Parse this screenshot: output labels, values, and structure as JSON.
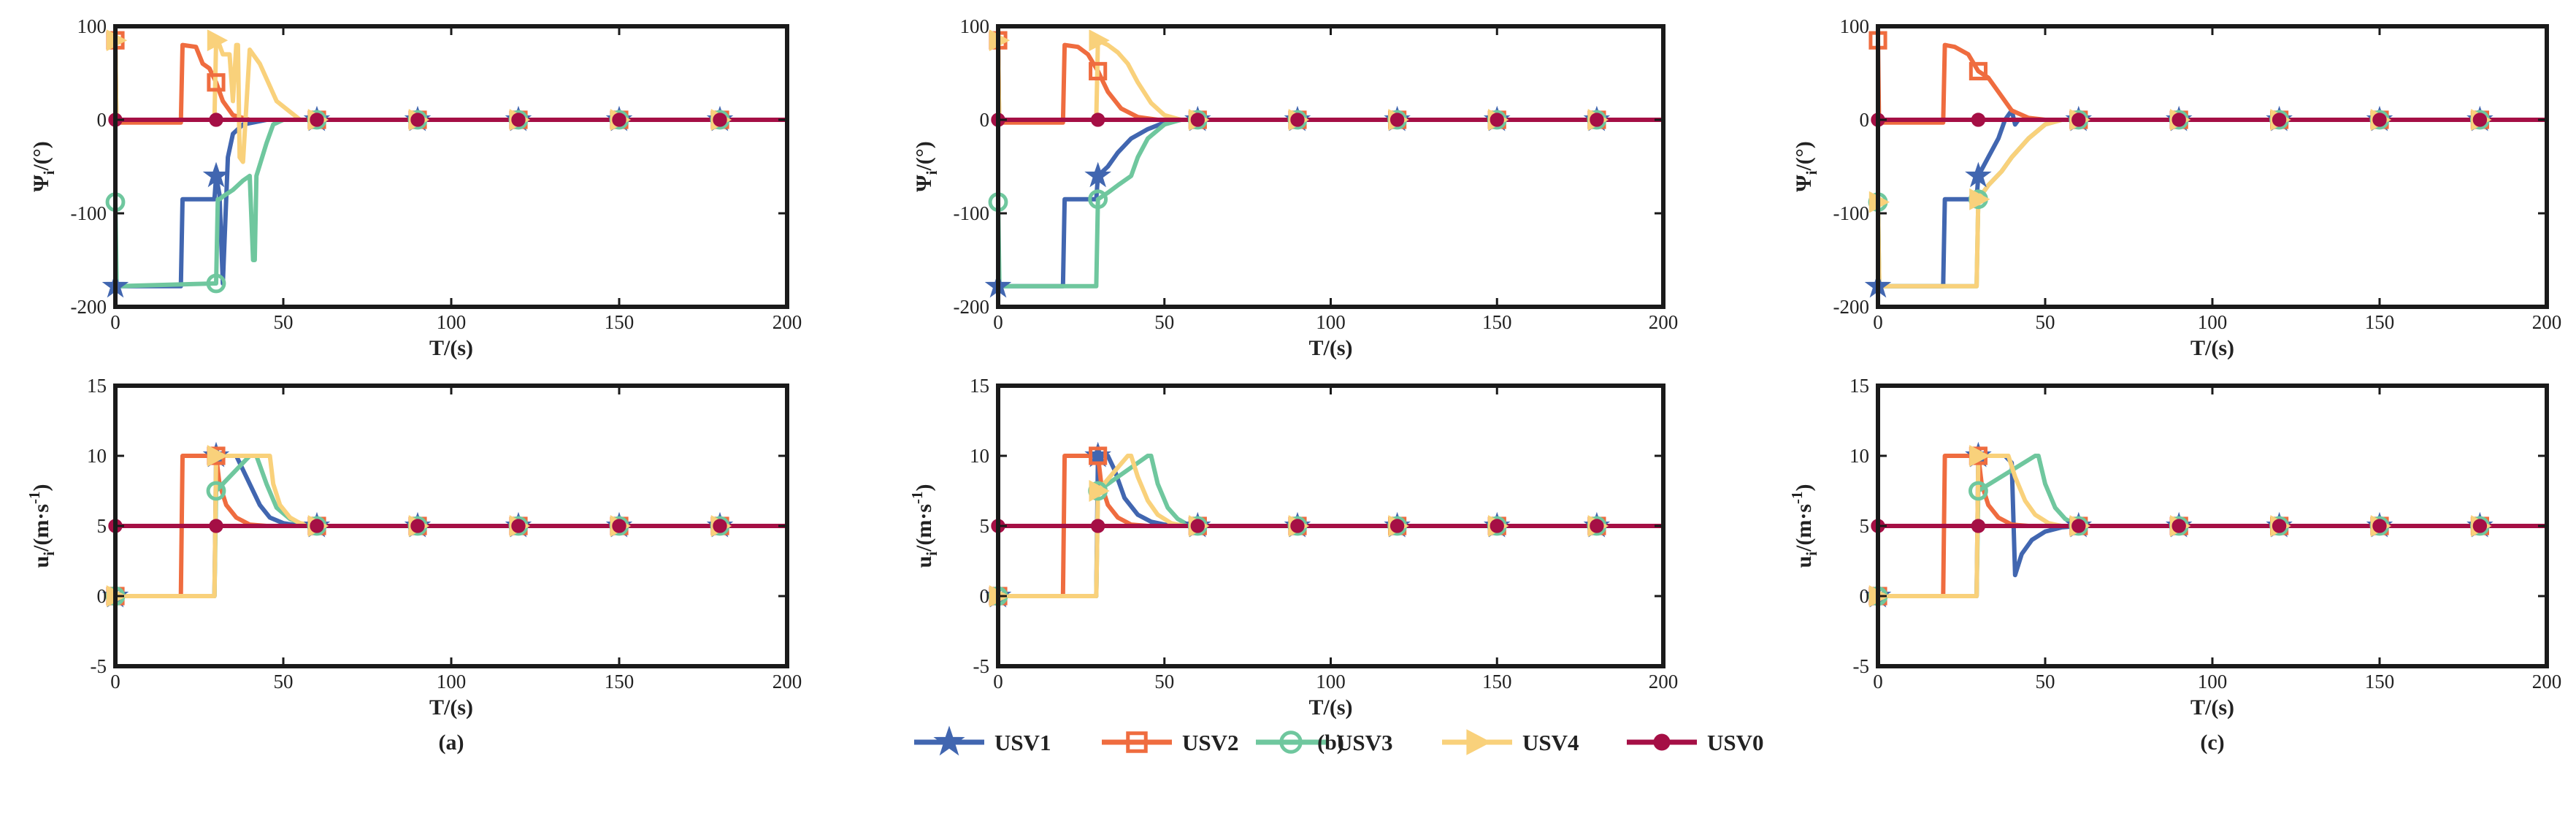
{
  "colors": {
    "USV1": "#4166b0",
    "USV2": "#ef6c3f",
    "USV3": "#6fc79e",
    "USV4": "#f9d17b",
    "USV0": "#a50f45"
  },
  "legend": [
    {
      "id": "USV1",
      "label": "USV1",
      "marker": "star"
    },
    {
      "id": "USV2",
      "label": "USV2",
      "marker": "square"
    },
    {
      "id": "USV3",
      "label": "USV3",
      "marker": "circle-open"
    },
    {
      "id": "USV4",
      "label": "USV4",
      "marker": "triangle-right"
    },
    {
      "id": "USV0",
      "label": "USV0",
      "marker": "circle-filled"
    }
  ],
  "axis_text": {
    "psi_ylabel_main": "Ψ",
    "psi_ylabel_sub": "i",
    "psi_ylabel_tail": "/(°)",
    "u_ylabel_main": "u",
    "u_ylabel_sub": "i",
    "u_ylabel_mid": "/(m·s",
    "u_ylabel_sup": "-1",
    "u_ylabel_tail": ")",
    "xlabel": "T/(s)"
  },
  "chart_data": [
    {
      "type": "line",
      "panel": "a",
      "quantity": "heading",
      "caption": "",
      "xlabel": "T/(s)",
      "ylabel": "Ψi/(°)",
      "xlim": [
        0,
        200
      ],
      "ylim": [
        -200,
        100
      ],
      "xticks": [
        "0",
        "50",
        "100",
        "150",
        "200"
      ],
      "yticks": [
        "100",
        "0",
        "-100",
        "-200"
      ],
      "series": [
        {
          "name": "USV1",
          "x": [
            0,
            19.5,
            20,
            29.5,
            30,
            31,
            32,
            33.5,
            35,
            38,
            45,
            60,
            200
          ],
          "y": [
            -178,
            -178,
            -85,
            -85,
            -60,
            -80,
            -175,
            -40,
            -15,
            -5,
            0,
            0,
            0
          ]
        },
        {
          "name": "USV2",
          "x": [
            0,
            0.3,
            1,
            19.5,
            20,
            24,
            26,
            28,
            30,
            32,
            35,
            40,
            45,
            50,
            55,
            60,
            200
          ],
          "y": [
            85,
            0,
            -3,
            -3,
            80,
            78,
            60,
            55,
            40,
            20,
            5,
            0,
            0,
            0,
            0,
            0,
            0
          ]
        },
        {
          "name": "USV3",
          "x": [
            0,
            0.4,
            30,
            30.5,
            31,
            32,
            35,
            38,
            40,
            41,
            41.5,
            42,
            45,
            47,
            50,
            55,
            60,
            200
          ],
          "y": [
            -88,
            -178,
            -175,
            -85,
            -85,
            -82,
            -75,
            -65,
            -60,
            -150,
            -150,
            -60,
            -25,
            -5,
            0,
            0,
            0,
            0
          ]
        },
        {
          "name": "USV4",
          "x": [
            0,
            0.3,
            29.5,
            30,
            31,
            32,
            34,
            35,
            36,
            36.5,
            37,
            38,
            40,
            43,
            48,
            55,
            60,
            200
          ],
          "y": [
            85,
            0,
            0,
            85,
            80,
            70,
            70,
            20,
            80,
            80,
            -40,
            -45,
            75,
            60,
            20,
            0,
            0,
            0
          ]
        },
        {
          "name": "USV0",
          "x": [
            0,
            200
          ],
          "y": [
            0,
            0
          ]
        }
      ]
    },
    {
      "type": "line",
      "panel": "b",
      "quantity": "heading",
      "caption": "",
      "xlabel": "T/(s)",
      "ylabel": "Ψi/(°)",
      "xlim": [
        0,
        200
      ],
      "ylim": [
        -200,
        100
      ],
      "xticks": [
        "0",
        "50",
        "100",
        "150",
        "200"
      ],
      "yticks": [
        "100",
        "0",
        "-100",
        "-200"
      ],
      "series": [
        {
          "name": "USV1",
          "x": [
            0,
            19.5,
            20,
            29.5,
            30,
            33,
            36,
            40,
            45,
            50,
            55,
            60,
            200
          ],
          "y": [
            -178,
            -178,
            -85,
            -85,
            -60,
            -50,
            -35,
            -20,
            -10,
            -3,
            0,
            0,
            0
          ]
        },
        {
          "name": "USV2",
          "x": [
            0,
            0.3,
            1,
            19.5,
            20,
            24,
            27,
            30,
            33,
            37,
            42,
            48,
            55,
            60,
            200
          ],
          "y": [
            85,
            0,
            -3,
            -3,
            80,
            78,
            70,
            52,
            30,
            12,
            3,
            0,
            0,
            0,
            0
          ]
        },
        {
          "name": "USV3",
          "x": [
            0,
            0.4,
            29.5,
            30,
            33,
            36,
            40,
            42,
            45,
            50,
            55,
            60,
            200
          ],
          "y": [
            -88,
            -178,
            -178,
            -85,
            -78,
            -70,
            -60,
            -40,
            -20,
            -5,
            0,
            0,
            0
          ]
        },
        {
          "name": "USV4",
          "x": [
            0,
            0.3,
            29.5,
            30,
            33,
            36,
            39,
            42,
            46,
            50,
            55,
            60,
            200
          ],
          "y": [
            85,
            0,
            0,
            85,
            80,
            72,
            60,
            40,
            18,
            5,
            0,
            0,
            0
          ]
        },
        {
          "name": "USV0",
          "x": [
            0,
            200
          ],
          "y": [
            0,
            0
          ]
        }
      ]
    },
    {
      "type": "line",
      "panel": "c",
      "quantity": "heading",
      "caption": "",
      "xlabel": "T/(s)",
      "ylabel": "Ψi/(°)",
      "xlim": [
        0,
        200
      ],
      "ylim": [
        -200,
        100
      ],
      "xticks": [
        "0",
        "50",
        "100",
        "150",
        "200"
      ],
      "yticks": [
        "100",
        "0",
        "-100",
        "-200"
      ],
      "series": [
        {
          "name": "USV1",
          "x": [
            0,
            19.5,
            20,
            29.5,
            30,
            33,
            36,
            38,
            40,
            41,
            42,
            45,
            50,
            55,
            60,
            200
          ],
          "y": [
            -178,
            -178,
            -85,
            -85,
            -60,
            -40,
            -20,
            0,
            10,
            -5,
            0,
            0,
            0,
            0,
            0,
            0
          ]
        },
        {
          "name": "USV2",
          "x": [
            0,
            0.3,
            1,
            19.5,
            20,
            23,
            27,
            30,
            33,
            35,
            38,
            40,
            45,
            50,
            55,
            60,
            200
          ],
          "y": [
            85,
            0,
            -3,
            -3,
            80,
            78,
            70,
            52,
            45,
            35,
            20,
            10,
            2,
            0,
            0,
            0,
            0
          ]
        },
        {
          "name": "USV3",
          "x": [
            0,
            0.4,
            29.5,
            30,
            33,
            37,
            40,
            45,
            50,
            55,
            60,
            200
          ],
          "y": [
            -88,
            -178,
            -178,
            -85,
            -70,
            -55,
            -40,
            -20,
            -5,
            0,
            0,
            0
          ]
        },
        {
          "name": "USV4",
          "x": [
            0,
            0.4,
            29.5,
            30,
            33,
            37,
            40,
            45,
            50,
            55,
            60,
            200
          ],
          "y": [
            -88,
            -178,
            -178,
            -85,
            -70,
            -55,
            -40,
            -20,
            -5,
            0,
            0,
            0
          ]
        },
        {
          "name": "USV0",
          "x": [
            0,
            200
          ],
          "y": [
            0,
            0
          ]
        }
      ]
    },
    {
      "type": "line",
      "panel": "a",
      "quantity": "surge-speed",
      "caption": "(a)",
      "xlabel": "T/(s)",
      "ylabel": "ui/(m·s-1)",
      "xlim": [
        0,
        200
      ],
      "ylim": [
        -5,
        15
      ],
      "xticks": [
        "0",
        "50",
        "100",
        "150",
        "200"
      ],
      "yticks": [
        "15",
        "10",
        "5",
        "0",
        "-5"
      ],
      "series": [
        {
          "name": "USV1",
          "x": [
            0,
            29.5,
            30,
            35,
            36,
            40,
            43,
            46,
            50,
            55,
            60,
            200
          ],
          "y": [
            0,
            0,
            10,
            10,
            10,
            8,
            6.5,
            5.6,
            5.2,
            5,
            5,
            5
          ]
        },
        {
          "name": "USV2",
          "x": [
            0,
            19.5,
            20,
            30,
            31,
            33,
            36,
            40,
            45,
            60,
            200
          ],
          "y": [
            0,
            0,
            10,
            10,
            8,
            6.5,
            5.6,
            5.1,
            5,
            5,
            5
          ]
        },
        {
          "name": "USV3",
          "x": [
            0,
            29.5,
            30,
            40,
            41,
            42,
            45,
            48,
            52,
            56,
            60,
            200
          ],
          "y": [
            0,
            0,
            7.5,
            10,
            10,
            10,
            8,
            6.3,
            5.5,
            5.1,
            5,
            5
          ]
        },
        {
          "name": "USV4",
          "x": [
            0,
            29.5,
            30,
            46,
            47,
            49,
            52,
            55,
            60,
            200
          ],
          "y": [
            0,
            0,
            10,
            10,
            8,
            6.5,
            5.6,
            5.2,
            5,
            5
          ]
        },
        {
          "name": "USV0",
          "x": [
            0,
            200
          ],
          "y": [
            5,
            5
          ]
        }
      ]
    },
    {
      "type": "line",
      "panel": "b",
      "quantity": "surge-speed",
      "caption": "(b)",
      "xlabel": "T/(s)",
      "ylabel": "ui/(m·s-1)",
      "xlim": [
        0,
        200
      ],
      "ylim": [
        -5,
        15
      ],
      "xticks": [
        "0",
        "50",
        "100",
        "150",
        "200"
      ],
      "yticks": [
        "15",
        "10",
        "5",
        "0",
        "-5"
      ],
      "series": [
        {
          "name": "USV1",
          "x": [
            0,
            29.5,
            30,
            33,
            35,
            38,
            42,
            46,
            50,
            55,
            60,
            200
          ],
          "y": [
            0,
            0,
            10,
            10,
            9,
            7,
            5.8,
            5.3,
            5.1,
            5,
            5,
            5
          ]
        },
        {
          "name": "USV2",
          "x": [
            0,
            19.5,
            20,
            30,
            31,
            33,
            36,
            40,
            45,
            60,
            200
          ],
          "y": [
            0,
            0,
            10,
            10,
            8,
            6.5,
            5.6,
            5.1,
            5,
            5,
            5
          ]
        },
        {
          "name": "USV3",
          "x": [
            0,
            29.5,
            30,
            45,
            46,
            48,
            51,
            54,
            57,
            60,
            200
          ],
          "y": [
            0,
            0,
            7.5,
            10,
            10,
            8,
            6.3,
            5.5,
            5.1,
            5,
            5
          ]
        },
        {
          "name": "USV4",
          "x": [
            0,
            29.5,
            30,
            39,
            40,
            42,
            45,
            48,
            52,
            56,
            60,
            200
          ],
          "y": [
            0,
            0,
            7.5,
            10,
            10,
            8.5,
            6.8,
            5.8,
            5.2,
            5,
            5,
            5
          ]
        },
        {
          "name": "USV0",
          "x": [
            0,
            200
          ],
          "y": [
            5,
            5
          ]
        }
      ]
    },
    {
      "type": "line",
      "panel": "c",
      "quantity": "surge-speed",
      "caption": "(c)",
      "xlabel": "T/(s)",
      "ylabel": "ui/(m·s-1)",
      "xlim": [
        0,
        200
      ],
      "ylim": [
        -5,
        15
      ],
      "xticks": [
        "0",
        "50",
        "100",
        "150",
        "200"
      ],
      "yticks": [
        "15",
        "10",
        "5",
        "0",
        "-5"
      ],
      "series": [
        {
          "name": "USV1",
          "x": [
            0,
            29.5,
            30,
            35,
            38,
            40,
            41,
            43,
            46,
            50,
            55,
            60,
            200
          ],
          "y": [
            0,
            0,
            10,
            10,
            10,
            9.5,
            1.5,
            3,
            4,
            4.6,
            4.9,
            5,
            5
          ]
        },
        {
          "name": "USV2",
          "x": [
            0,
            19.5,
            20,
            30,
            31,
            33,
            36,
            40,
            45,
            60,
            200
          ],
          "y": [
            0,
            0,
            10,
            10,
            8,
            6.5,
            5.6,
            5.1,
            5,
            5,
            5
          ]
        },
        {
          "name": "USV3",
          "x": [
            0,
            29.5,
            30,
            47,
            48,
            50,
            53,
            56,
            60,
            200
          ],
          "y": [
            0,
            0,
            7.5,
            10,
            10,
            8,
            6.3,
            5.5,
            5,
            5
          ]
        },
        {
          "name": "USV4",
          "x": [
            0,
            29.5,
            30,
            38,
            39,
            41,
            44,
            47,
            51,
            55,
            60,
            200
          ],
          "y": [
            0,
            0,
            10,
            10,
            10,
            8.5,
            6.8,
            5.8,
            5.2,
            5,
            5,
            5
          ]
        },
        {
          "name": "USV0",
          "x": [
            0,
            200
          ],
          "y": [
            5,
            5
          ]
        }
      ]
    }
  ]
}
